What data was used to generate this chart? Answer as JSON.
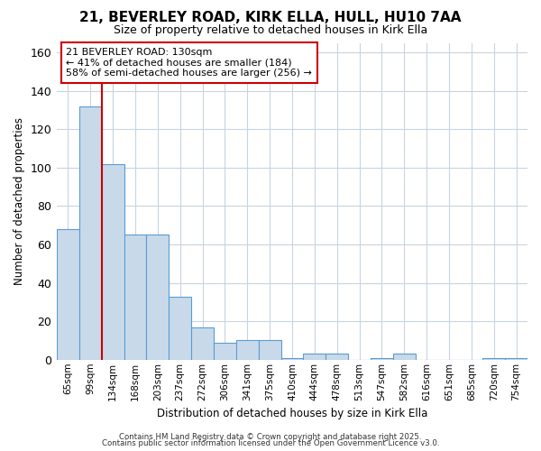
{
  "title_line1": "21, BEVERLEY ROAD, KIRK ELLA, HULL, HU10 7AA",
  "title_line2": "Size of property relative to detached houses in Kirk Ella",
  "xlabel": "Distribution of detached houses by size in Kirk Ella",
  "ylabel": "Number of detached properties",
  "categories": [
    "65sqm",
    "99sqm",
    "134sqm",
    "168sqm",
    "203sqm",
    "237sqm",
    "272sqm",
    "306sqm",
    "341sqm",
    "375sqm",
    "410sqm",
    "444sqm",
    "478sqm",
    "513sqm",
    "547sqm",
    "582sqm",
    "616sqm",
    "651sqm",
    "685sqm",
    "720sqm",
    "754sqm"
  ],
  "values": [
    68,
    132,
    102,
    65,
    65,
    33,
    17,
    9,
    10,
    10,
    1,
    3,
    3,
    0,
    1,
    3,
    0,
    0,
    0,
    1,
    1
  ],
  "bar_color": "#c8daea",
  "bar_edge_color": "#5b9bd5",
  "background_color": "#ffffff",
  "grid_color": "#c8d4e0",
  "red_line_x": 2.0,
  "annotation_text_line1": "21 BEVERLEY ROAD: 130sqm",
  "annotation_text_line2": "← 41% of detached houses are smaller (184)",
  "annotation_text_line3": "58% of semi-detached houses are larger (256) →",
  "annotation_box_color": "#ffffff",
  "annotation_box_edge": "#cc0000",
  "ylim": [
    0,
    165
  ],
  "yticks": [
    0,
    20,
    40,
    60,
    80,
    100,
    120,
    140,
    160
  ],
  "footer_line1": "Contains HM Land Registry data © Crown copyright and database right 2025.",
  "footer_line2": "Contains public sector information licensed under the Open Government Licence v3.0."
}
